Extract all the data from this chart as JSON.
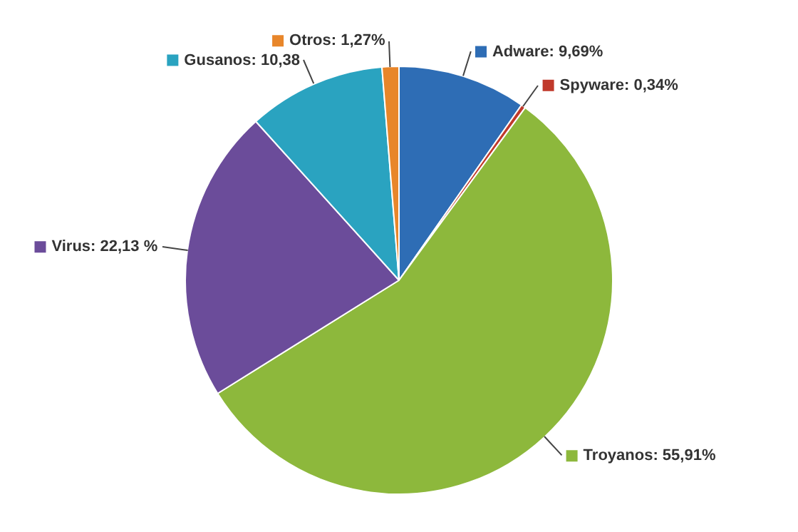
{
  "chart_data": {
    "type": "pie",
    "categories": [
      "Adware",
      "Spyware",
      "Troyanos",
      "Virus",
      "Gusanos",
      "Otros"
    ],
    "values": [
      9.69,
      0.34,
      55.91,
      22.13,
      10.38,
      1.27
    ],
    "value_labels": [
      "9,69%",
      "0,34%",
      "55,91%",
      "22,13 %",
      "10,38",
      "1,27%"
    ],
    "colors": [
      "#2e6db5",
      "#c0392b",
      "#8db83c",
      "#6b4c9a",
      "#2aa3c0",
      "#e8862a"
    ],
    "legend": "top left"
  }
}
